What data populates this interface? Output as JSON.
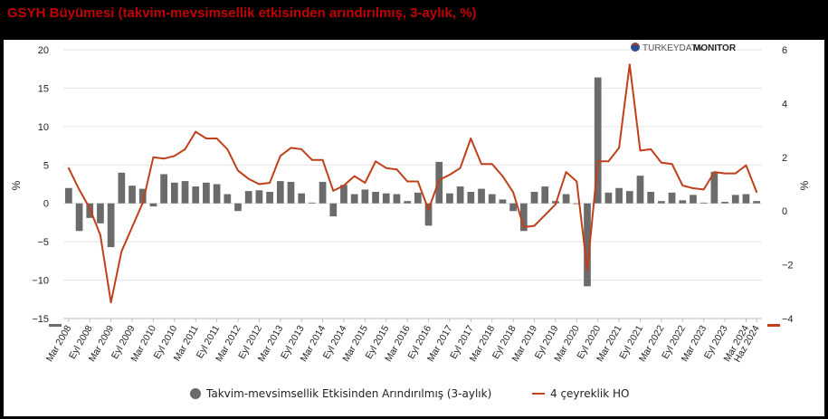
{
  "header": {
    "title": "GSYH Büyümesi (takvim-mevsimsellik etkisinden arındırılmış, 3-aylık, %)"
  },
  "watermark": {
    "part1": "TURKEYDATA",
    "part2": "MONITOR"
  },
  "colors": {
    "bars": "#6b6b6b",
    "line": "#c0401b",
    "title": "#c00000"
  },
  "chart_data": {
    "type": "bar",
    "title": "GSYH Büyümesi (takvim-mevsimsellik etkisinden arındırılmış, 3-aylık, %)",
    "x": [
      "2008Q1",
      "2008Q2",
      "2008Q3",
      "2008Q4",
      "2009Q1",
      "2009Q2",
      "2009Q3",
      "2009Q4",
      "2010Q1",
      "2010Q2",
      "2010Q3",
      "2010Q4",
      "2011Q1",
      "2011Q2",
      "2011Q3",
      "2011Q4",
      "2012Q1",
      "2012Q2",
      "2012Q3",
      "2012Q4",
      "2013Q1",
      "2013Q2",
      "2013Q3",
      "2013Q4",
      "2014Q1",
      "2014Q2",
      "2014Q3",
      "2014Q4",
      "2015Q1",
      "2015Q2",
      "2015Q3",
      "2015Q4",
      "2016Q1",
      "2016Q2",
      "2016Q3",
      "2016Q4",
      "2017Q1",
      "2017Q2",
      "2017Q3",
      "2017Q4",
      "2018Q1",
      "2018Q2",
      "2018Q3",
      "2018Q4",
      "2019Q1",
      "2019Q2",
      "2019Q3",
      "2019Q4",
      "2020Q1",
      "2020Q2",
      "2020Q3",
      "2020Q4",
      "2021Q1",
      "2021Q2",
      "2021Q3",
      "2021Q4",
      "2022Q1",
      "2022Q2",
      "2022Q3",
      "2022Q4",
      "2023Q1",
      "2023Q2",
      "2023Q3",
      "2023Q4",
      "2024Q1",
      "2024Q2"
    ],
    "tick_labels": [
      {
        "i": 0,
        "label": "Mar 2008"
      },
      {
        "i": 2,
        "label": "Eyl 2008"
      },
      {
        "i": 4,
        "label": "Mar 2009"
      },
      {
        "i": 6,
        "label": "Eyl 2009"
      },
      {
        "i": 8,
        "label": "Mar 2010"
      },
      {
        "i": 10,
        "label": "Eyl 2010"
      },
      {
        "i": 12,
        "label": "Mar 2011"
      },
      {
        "i": 14,
        "label": "Eyl 2011"
      },
      {
        "i": 16,
        "label": "Mar 2012"
      },
      {
        "i": 18,
        "label": "Eyl 2012"
      },
      {
        "i": 20,
        "label": "Mar 2013"
      },
      {
        "i": 22,
        "label": "Eyl 2013"
      },
      {
        "i": 24,
        "label": "Mar 2014"
      },
      {
        "i": 26,
        "label": "Eyl 2014"
      },
      {
        "i": 28,
        "label": "Mar 2015"
      },
      {
        "i": 30,
        "label": "Eyl 2015"
      },
      {
        "i": 32,
        "label": "Mar 2016"
      },
      {
        "i": 34,
        "label": "Eyl 2016"
      },
      {
        "i": 36,
        "label": "Mar 2017"
      },
      {
        "i": 38,
        "label": "Eyl 2017"
      },
      {
        "i": 40,
        "label": "Mar 2018"
      },
      {
        "i": 42,
        "label": "Eyl 2018"
      },
      {
        "i": 44,
        "label": "Mar 2019"
      },
      {
        "i": 46,
        "label": "Eyl 2019"
      },
      {
        "i": 48,
        "label": "Mar 2020"
      },
      {
        "i": 50,
        "label": "Eyl 2020"
      },
      {
        "i": 52,
        "label": "Mar 2021"
      },
      {
        "i": 54,
        "label": "Eyl 2021"
      },
      {
        "i": 56,
        "label": "Mar 2022"
      },
      {
        "i": 58,
        "label": "Eyl 2022"
      },
      {
        "i": 60,
        "label": "Mar 2023"
      },
      {
        "i": 62,
        "label": "Eyl 2023"
      },
      {
        "i": 64,
        "label": "Mar 2024"
      },
      {
        "i": 65,
        "label": "Haz 2024"
      }
    ],
    "series": [
      {
        "name": "Takvim-mevsimsellik Etkisinden Arındırılmış (3-aylık)",
        "type": "bar",
        "axis": "left",
        "values": [
          2.0,
          -3.6,
          -1.9,
          -2.6,
          -5.7,
          4.0,
          2.3,
          1.9,
          -0.4,
          3.8,
          2.7,
          2.9,
          2.2,
          2.7,
          2.5,
          1.2,
          -1.0,
          1.6,
          1.7,
          1.5,
          2.9,
          2.8,
          1.3,
          0.1,
          2.8,
          -1.7,
          2.4,
          1.2,
          1.8,
          1.5,
          1.3,
          1.2,
          0.3,
          1.4,
          -2.9,
          5.4,
          1.3,
          2.2,
          1.5,
          1.9,
          1.2,
          0.5,
          -1.0,
          -3.6,
          1.5,
          2.2,
          0.3,
          1.2,
          -0.1,
          -10.8,
          16.4,
          1.4,
          2.0,
          1.6,
          3.6,
          1.5,
          0.3,
          1.4,
          0.4,
          1.1,
          0.1,
          4.1,
          0.2,
          1.1,
          1.2,
          0.3
        ]
      },
      {
        "name": "4 çeyreklik HO",
        "type": "line",
        "axis": "right",
        "values": [
          1.6,
          0.8,
          0.1,
          -0.9,
          -3.4,
          -1.5,
          -0.6,
          0.3,
          2.0,
          1.95,
          2.05,
          2.3,
          2.95,
          2.7,
          2.7,
          2.3,
          1.5,
          1.2,
          1.0,
          1.05,
          2.05,
          2.35,
          2.3,
          1.9,
          1.9,
          0.75,
          0.95,
          1.3,
          1.05,
          1.85,
          1.6,
          1.55,
          1.1,
          1.1,
          0.05,
          1.15,
          1.35,
          1.6,
          2.7,
          1.75,
          1.75,
          1.3,
          0.7,
          -0.6,
          -0.55,
          -0.15,
          0.25,
          1.45,
          1.1,
          -2.2,
          1.85,
          1.85,
          2.35,
          5.45,
          2.25,
          2.3,
          1.8,
          1.75,
          0.95,
          0.85,
          0.8,
          1.45,
          1.4,
          1.4,
          1.7,
          0.7
        ]
      }
    ],
    "y_left": {
      "label": "%",
      "ylim": [
        -15,
        20
      ],
      "ticks": [
        20,
        15,
        10,
        5,
        0,
        -5,
        -10,
        -15
      ],
      "tick_text": [
        "20",
        "15",
        "10",
        "5",
        "0",
        "−5",
        "−10",
        "−15"
      ]
    },
    "y_right": {
      "label": "%",
      "ylim": [
        -4,
        6
      ],
      "ticks": [
        6,
        4,
        2,
        0,
        -2,
        -4
      ],
      "tick_text": [
        "6",
        "4",
        "2",
        "0",
        "−2",
        "−4"
      ]
    },
    "grid": "horizontal",
    "legend": "bottom",
    "legend_labels": [
      "Takvim-mevsimsellik Etkisinden Arındırılmış (3-aylık)",
      "4 çeyreklik HO"
    ]
  }
}
